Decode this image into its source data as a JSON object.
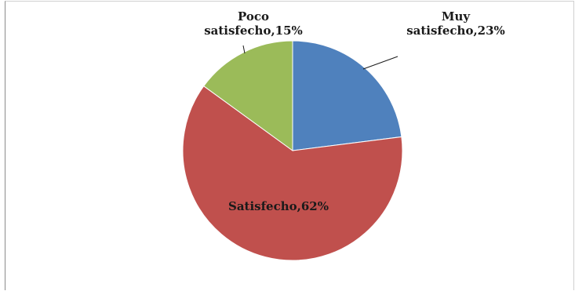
{
  "chart_data": {
    "type": "pie",
    "title": "",
    "categories": [
      "Muy satisfecho",
      "Satisfecho",
      "Poco satisfecho"
    ],
    "values": [
      23,
      62,
      15
    ],
    "units": "%",
    "colors": [
      "#4f81bd",
      "#c0504d",
      "#9bbb59"
    ],
    "legend": "none",
    "start_angle_deg": 0,
    "direction": "clockwise",
    "labels": [
      {
        "lines": [
          "Muy",
          "satisfecho,23%"
        ],
        "leader_line": true
      },
      {
        "lines": [
          "Satisfecho,62%"
        ],
        "leader_line": false
      },
      {
        "lines": [
          "Poco",
          "satisfecho,15%"
        ],
        "leader_line": true
      }
    ]
  }
}
